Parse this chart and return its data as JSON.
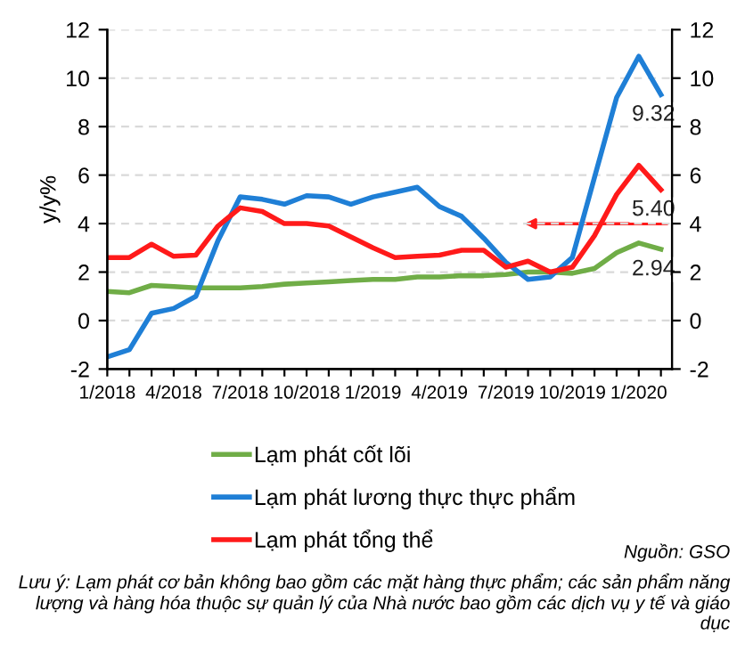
{
  "chart_data": {
    "type": "line",
    "categories": [
      "1/2018",
      null,
      null,
      "4/2018",
      null,
      null,
      "7/2018",
      null,
      null,
      "10/2018",
      null,
      null,
      "1/2019",
      null,
      null,
      "4/2019",
      null,
      null,
      "7/2019",
      null,
      null,
      "10/2019",
      null,
      null,
      "1/2020",
      null
    ],
    "series": [
      {
        "name": "Lạm phát cốt lõi",
        "color": "#70ad47",
        "values": [
          1.2,
          1.15,
          1.45,
          1.4,
          1.35,
          1.35,
          1.35,
          1.4,
          1.5,
          1.55,
          1.6,
          1.65,
          1.7,
          1.7,
          1.8,
          1.8,
          1.85,
          1.85,
          1.9,
          2.0,
          2.0,
          1.95,
          2.15,
          2.8,
          3.2,
          2.94
        ],
        "value_labels": [
          null,
          null,
          null,
          null,
          null,
          null,
          null,
          null,
          null,
          null,
          null,
          null,
          null,
          null,
          null,
          null,
          null,
          null,
          null,
          null,
          null,
          null,
          null,
          null,
          null,
          "2.94"
        ]
      },
      {
        "name": "Lạm phát lương thực thực phẩm",
        "color": "#1f7fd6",
        "values": [
          -1.5,
          -1.2,
          0.3,
          0.5,
          1.0,
          3.3,
          5.1,
          5.0,
          4.8,
          5.15,
          5.1,
          4.8,
          5.1,
          5.3,
          5.5,
          4.7,
          4.3,
          3.4,
          2.4,
          1.7,
          1.8,
          2.6,
          5.9,
          9.2,
          10.9,
          9.32
        ],
        "value_labels": [
          null,
          null,
          null,
          null,
          null,
          null,
          null,
          null,
          null,
          null,
          null,
          null,
          null,
          null,
          null,
          null,
          null,
          null,
          null,
          null,
          null,
          null,
          null,
          null,
          null,
          "9.32"
        ]
      },
      {
        "name": "Lạm phát tổng thể",
        "color": "#ff1a1a",
        "values": [
          2.6,
          2.6,
          3.15,
          2.65,
          2.7,
          3.9,
          4.65,
          4.5,
          4.0,
          4.0,
          3.9,
          3.45,
          3.0,
          2.6,
          2.65,
          2.7,
          2.9,
          2.9,
          2.2,
          2.45,
          2.0,
          2.2,
          3.5,
          5.2,
          6.4,
          5.4
        ],
        "value_labels": [
          null,
          null,
          null,
          null,
          null,
          null,
          null,
          null,
          null,
          null,
          null,
          null,
          null,
          null,
          null,
          null,
          null,
          null,
          null,
          null,
          null,
          null,
          null,
          null,
          null,
          "5.40"
        ]
      }
    ],
    "ylabel": "y/y%",
    "ylim": [
      -2,
      12
    ],
    "yticks": [
      -2,
      0,
      2,
      4,
      6,
      8,
      10,
      12
    ],
    "y2lim": [
      -2,
      12
    ],
    "y2ticks": [
      -2,
      0,
      2,
      4,
      6,
      8,
      10,
      12
    ],
    "grid": "y",
    "legend": "bottom",
    "marker": "none",
    "line_style": "solid",
    "annotations": [
      "Nguồn: GSO",
      "Lưu ý: Lạm phát cơ bản không bao gồm các mặt hàng thực phẩm; các sản phẩm năng lượng và hàng hóa thuộc sự quản lý của Nhà nước bao gồm các dịch vụ y tế và giáo dục"
    ]
  }
}
